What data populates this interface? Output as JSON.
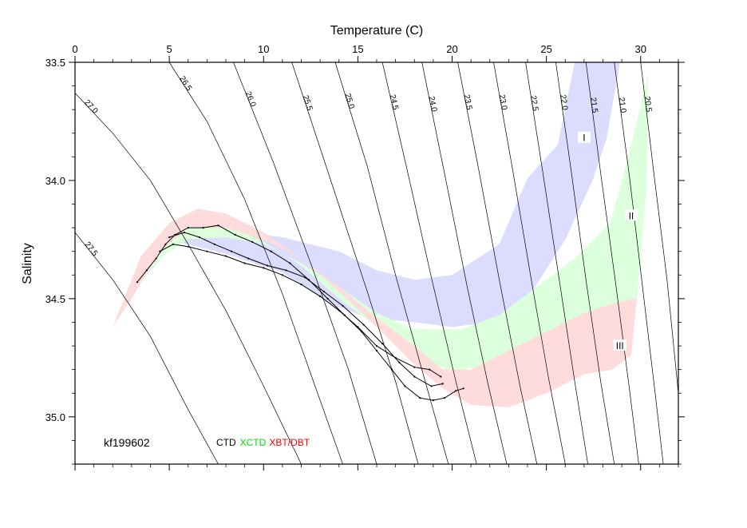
{
  "chart_data": {
    "type": "scatter",
    "title": "",
    "xlabel": "Temperature (C)",
    "ylabel": "Salinity",
    "xlim": [
      0,
      32
    ],
    "ylim": [
      35.2,
      33.5
    ],
    "x_ticks": [
      "0",
      "5",
      "10",
      "15",
      "20",
      "25",
      "30"
    ],
    "y_ticks": [
      "33.5",
      "34.0",
      "34.5",
      "35.0"
    ],
    "grid": false,
    "cruise_label": "kf199602",
    "legend": [
      {
        "name": "CTD",
        "color": "#000000"
      },
      {
        "name": "XCTD",
        "color": "#00dd00"
      },
      {
        "name": "XBT/DBT",
        "color": "#ff0000"
      }
    ],
    "density_contours": [
      {
        "label": "27.0",
        "points": [
          [
            0,
            33.63
          ],
          [
            2,
            33.8
          ],
          [
            4,
            34.0
          ],
          [
            6,
            34.27
          ],
          [
            8,
            34.55
          ],
          [
            10,
            34.87
          ],
          [
            12,
            35.2
          ]
        ]
      },
      {
        "label": "27.5",
        "points": [
          [
            0,
            34.22
          ],
          [
            2,
            34.42
          ],
          [
            4,
            34.66
          ],
          [
            6,
            34.97
          ],
          [
            7.6,
            35.2
          ]
        ]
      },
      {
        "label": "26.5",
        "points": [
          [
            5,
            33.5
          ],
          [
            7,
            33.75
          ],
          [
            9,
            34.08
          ],
          [
            11,
            34.48
          ],
          [
            13,
            34.93
          ],
          [
            14.2,
            35.2
          ]
        ]
      },
      {
        "label": "26.0",
        "points": [
          [
            8.4,
            33.5
          ],
          [
            10.5,
            33.92
          ],
          [
            12.5,
            34.35
          ],
          [
            14.5,
            34.8
          ],
          [
            16,
            35.2
          ]
        ]
      },
      {
        "label": "25.5",
        "points": [
          [
            11.5,
            33.5
          ],
          [
            13.4,
            33.96
          ],
          [
            15.5,
            34.47
          ],
          [
            17,
            34.85
          ],
          [
            18.2,
            35.2
          ]
        ]
      },
      {
        "label": "25.0",
        "points": [
          [
            13.8,
            33.5
          ],
          [
            15.5,
            33.94
          ],
          [
            17,
            34.4
          ],
          [
            18.5,
            34.83
          ],
          [
            19.8,
            35.2
          ]
        ]
      },
      {
        "label": "24.5",
        "points": [
          [
            16.3,
            33.5
          ],
          [
            17.6,
            33.95
          ],
          [
            18.9,
            34.41
          ],
          [
            20.2,
            34.85
          ],
          [
            21.3,
            35.2
          ]
        ]
      },
      {
        "label": "24.0",
        "points": [
          [
            18.4,
            33.5
          ],
          [
            19.6,
            33.97
          ],
          [
            20.8,
            34.45
          ],
          [
            21.9,
            34.86
          ],
          [
            22.9,
            35.2
          ]
        ]
      },
      {
        "label": "23.5",
        "points": [
          [
            20.3,
            33.5
          ],
          [
            21.4,
            33.95
          ],
          [
            22.5,
            34.42
          ],
          [
            23.6,
            34.87
          ],
          [
            24.5,
            35.2
          ]
        ]
      },
      {
        "label": "23.0",
        "points": [
          [
            22.2,
            33.5
          ],
          [
            23.2,
            33.95
          ],
          [
            24.2,
            34.42
          ],
          [
            25.1,
            34.83
          ],
          [
            26,
            35.2
          ]
        ]
      },
      {
        "label": "22.5",
        "points": [
          [
            23.9,
            33.5
          ],
          [
            24.8,
            33.96
          ],
          [
            25.7,
            34.43
          ],
          [
            26.5,
            34.85
          ],
          [
            27.2,
            35.2
          ]
        ]
      },
      {
        "label": "22.0",
        "points": [
          [
            25.5,
            33.5
          ],
          [
            26.3,
            33.95
          ],
          [
            27.1,
            34.42
          ],
          [
            27.9,
            34.86
          ],
          [
            28.6,
            35.2
          ]
        ]
      },
      {
        "label": "21.5",
        "points": [
          [
            27.1,
            33.5
          ],
          [
            27.9,
            33.98
          ],
          [
            28.7,
            34.45
          ],
          [
            29.4,
            34.88
          ],
          [
            29.9,
            35.2
          ]
        ]
      },
      {
        "label": "21.0",
        "points": [
          [
            28.6,
            33.5
          ],
          [
            29.4,
            33.98
          ],
          [
            30.1,
            34.45
          ],
          [
            30.8,
            34.92
          ],
          [
            31.2,
            35.2
          ]
        ]
      },
      {
        "label": "20.5",
        "points": [
          [
            30.0,
            33.5
          ],
          [
            30.7,
            33.97
          ],
          [
            31.4,
            34.42
          ],
          [
            32.0,
            34.9
          ]
        ]
      }
    ],
    "regions": [
      {
        "label": "I",
        "color": "#dcdcff",
        "label_at": [
          27.0,
          33.82
        ],
        "points": [
          [
            5.5,
            34.26
          ],
          [
            8,
            34.31
          ],
          [
            11,
            34.39
          ],
          [
            13.5,
            34.52
          ],
          [
            15.5,
            34.58
          ],
          [
            18,
            34.6
          ],
          [
            20,
            34.62
          ],
          [
            22,
            34.6
          ],
          [
            24,
            34.5
          ],
          [
            26,
            34.25
          ],
          [
            27.5,
            33.99
          ],
          [
            28.2,
            33.82
          ],
          [
            28.9,
            33.5
          ],
          [
            26.5,
            33.5
          ],
          [
            25.6,
            33.85
          ],
          [
            24,
            33.99
          ],
          [
            22.5,
            34.27
          ],
          [
            20,
            34.4
          ],
          [
            18,
            34.42
          ],
          [
            16,
            34.38
          ],
          [
            14,
            34.3
          ],
          [
            11,
            34.24
          ],
          [
            8,
            34.21
          ],
          [
            6,
            34.24
          ]
        ]
      },
      {
        "label": "II",
        "color": "#dcffdc",
        "label_at": [
          29.5,
          34.15
        ],
        "points": [
          [
            3.5,
            34.43
          ],
          [
            4.8,
            34.28
          ],
          [
            6.5,
            34.17
          ],
          [
            8,
            34.18
          ],
          [
            10,
            34.26
          ],
          [
            12,
            34.36
          ],
          [
            14,
            34.5
          ],
          [
            16,
            34.62
          ],
          [
            18,
            34.74
          ],
          [
            20,
            34.81
          ],
          [
            22.5,
            34.77
          ],
          [
            25,
            34.67
          ],
          [
            27.5,
            34.55
          ],
          [
            29.2,
            34.51
          ],
          [
            29.8,
            34.5
          ],
          [
            30.3,
            34.05
          ],
          [
            30.4,
            33.55
          ],
          [
            29.5,
            33.85
          ],
          [
            28.4,
            34.18
          ],
          [
            26.5,
            34.33
          ],
          [
            24.5,
            34.45
          ],
          [
            22.5,
            34.57
          ],
          [
            20.5,
            34.63
          ],
          [
            18,
            34.63
          ],
          [
            16,
            34.56
          ],
          [
            14,
            34.45
          ],
          [
            12,
            34.35
          ],
          [
            10,
            34.27
          ],
          [
            8,
            34.24
          ],
          [
            6,
            34.25
          ],
          [
            4.8,
            34.31
          ]
        ]
      },
      {
        "label": "III",
        "color": "#ffdcdc",
        "label_at": [
          28.9,
          34.7
        ],
        "points": [
          [
            2,
            34.62
          ],
          [
            3.5,
            34.32
          ],
          [
            5,
            34.18
          ],
          [
            6.5,
            34.12
          ],
          [
            8,
            34.14
          ],
          [
            10,
            34.22
          ],
          [
            12,
            34.33
          ],
          [
            14,
            34.47
          ],
          [
            16,
            34.62
          ],
          [
            18,
            34.78
          ],
          [
            19.5,
            34.88
          ],
          [
            21,
            34.95
          ],
          [
            23,
            34.96
          ],
          [
            25,
            34.9
          ],
          [
            27,
            34.82
          ],
          [
            28.5,
            34.8
          ],
          [
            29.5,
            34.74
          ],
          [
            29.8,
            34.5
          ],
          [
            29,
            34.51
          ],
          [
            27,
            34.56
          ],
          [
            25,
            34.64
          ],
          [
            23,
            34.72
          ],
          [
            21,
            34.8
          ],
          [
            19.5,
            34.8
          ],
          [
            18,
            34.7
          ],
          [
            16,
            34.58
          ],
          [
            14,
            34.45
          ],
          [
            12,
            34.33
          ],
          [
            10,
            34.25
          ],
          [
            8,
            34.2
          ],
          [
            6,
            34.2
          ],
          [
            4.5,
            34.3
          ],
          [
            3,
            34.5
          ]
        ]
      }
    ],
    "ctd_series": [
      {
        "name": "CTD",
        "color": "#000000",
        "points": [
          [
            3.3,
            34.43
          ],
          [
            3.8,
            34.38
          ],
          [
            4.3,
            34.33
          ],
          [
            4.8,
            34.27
          ],
          [
            5.3,
            34.23
          ],
          [
            6,
            34.2
          ],
          [
            6.8,
            34.2
          ],
          [
            7.6,
            34.19
          ],
          [
            8.5,
            34.23
          ],
          [
            9.4,
            34.26
          ],
          [
            10.4,
            34.3
          ],
          [
            11.4,
            34.35
          ],
          [
            12.4,
            34.42
          ],
          [
            13.4,
            34.5
          ],
          [
            14.3,
            34.57
          ],
          [
            15.2,
            34.64
          ],
          [
            16,
            34.72
          ],
          [
            16.8,
            34.8
          ],
          [
            17.5,
            34.87
          ],
          [
            18.3,
            34.92
          ],
          [
            19,
            34.93
          ],
          [
            19.6,
            34.92
          ],
          [
            20.2,
            34.89
          ],
          [
            20.6,
            34.88
          ]
        ]
      },
      {
        "name": "CTD",
        "color": "#000000",
        "points": [
          [
            4.5,
            34.3
          ],
          [
            5.2,
            34.27
          ],
          [
            6,
            34.28
          ],
          [
            7,
            34.3
          ],
          [
            8,
            34.32
          ],
          [
            9,
            34.35
          ],
          [
            10,
            34.37
          ],
          [
            11,
            34.4
          ],
          [
            12,
            34.44
          ],
          [
            13,
            34.49
          ],
          [
            14,
            34.55
          ],
          [
            15,
            34.62
          ],
          [
            16,
            34.7
          ],
          [
            17,
            34.75
          ],
          [
            18,
            34.79
          ],
          [
            18.8,
            34.8
          ],
          [
            19.4,
            34.83
          ]
        ]
      },
      {
        "name": "CTD",
        "color": "#000000",
        "points": [
          [
            5,
            34.24
          ],
          [
            5.8,
            34.22
          ],
          [
            6.6,
            34.24
          ],
          [
            7.4,
            34.27
          ],
          [
            8.3,
            34.3
          ],
          [
            9.2,
            34.33
          ],
          [
            10.2,
            34.36
          ],
          [
            11.2,
            34.38
          ],
          [
            12.2,
            34.41
          ],
          [
            13.2,
            34.47
          ],
          [
            14.2,
            34.53
          ],
          [
            15.3,
            34.61
          ],
          [
            16.3,
            34.69
          ],
          [
            17.2,
            34.77
          ],
          [
            18,
            34.83
          ],
          [
            18.9,
            34.87
          ],
          [
            19.5,
            34.86
          ]
        ]
      }
    ]
  }
}
